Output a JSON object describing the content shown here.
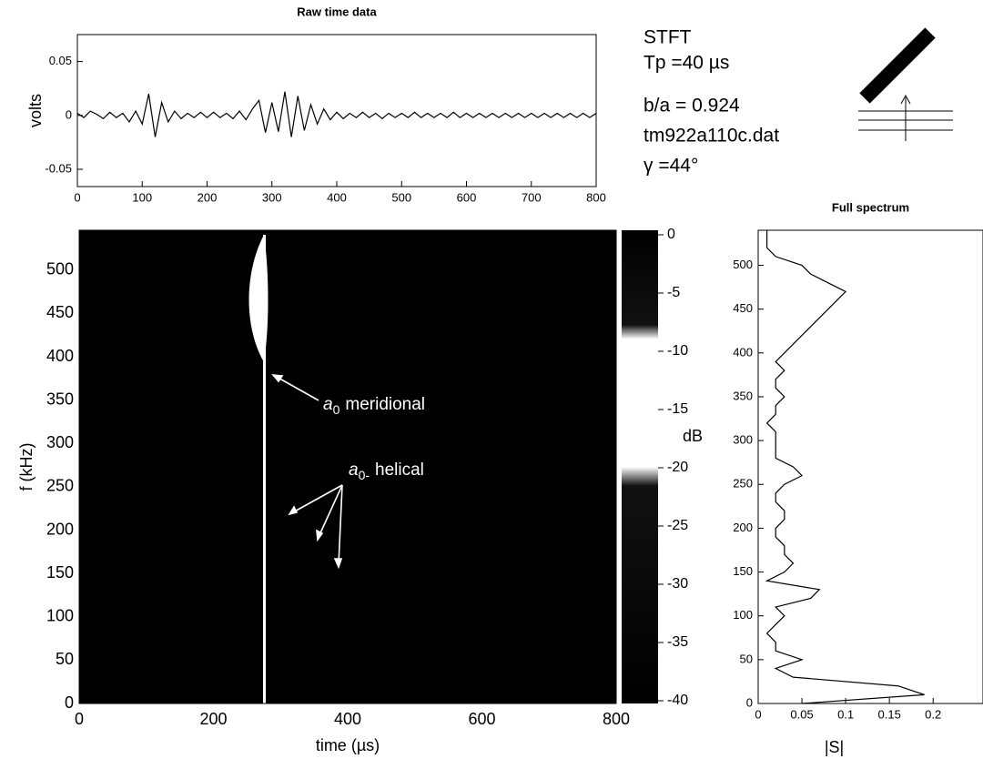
{
  "chart_data": [
    {
      "type": "line",
      "title": "Raw time data",
      "ylabel": "volts",
      "x": [
        0,
        10,
        20,
        30,
        40,
        50,
        60,
        70,
        80,
        90,
        100,
        110,
        120,
        130,
        140,
        150,
        160,
        170,
        180,
        190,
        200,
        210,
        220,
        230,
        240,
        250,
        260,
        270,
        280,
        290,
        300,
        310,
        320,
        330,
        340,
        350,
        360,
        370,
        380,
        390,
        400,
        410,
        420,
        430,
        440,
        450,
        460,
        470,
        480,
        490,
        500,
        510,
        520,
        530,
        540,
        550,
        560,
        570,
        580,
        590,
        600,
        610,
        620,
        630,
        640,
        650,
        660,
        670,
        680,
        690,
        700,
        710,
        720,
        730,
        740,
        750,
        760,
        770,
        780,
        790,
        800
      ],
      "values": [
        0.002,
        -0.002,
        0.004,
        0.001,
        -0.003,
        0.003,
        -0.002,
        0.002,
        -0.006,
        0.004,
        -0.008,
        0.02,
        -0.02,
        0.012,
        -0.006,
        0.004,
        -0.003,
        0.002,
        -0.002,
        0.003,
        -0.002,
        0.003,
        -0.002,
        0.002,
        -0.003,
        0.004,
        -0.004,
        0.006,
        0.014,
        -0.016,
        0.012,
        -0.015,
        0.022,
        -0.02,
        0.018,
        -0.014,
        0.01,
        -0.008,
        0.006,
        -0.004,
        0.003,
        -0.003,
        0.002,
        -0.002,
        0.003,
        -0.002,
        0.002,
        -0.003,
        0.002,
        -0.002,
        0.002,
        -0.002,
        0.003,
        -0.002,
        0.002,
        -0.002,
        0.002,
        -0.002,
        0.003,
        -0.002,
        0.002,
        -0.002,
        0.002,
        -0.002,
        0.002,
        -0.002,
        0.002,
        -0.002,
        0.002,
        -0.002,
        0.002,
        -0.002,
        0.002,
        -0.002,
        0.002,
        -0.002,
        0.002,
        -0.002,
        0.002,
        -0.002,
        0.002
      ],
      "color": "#000000",
      "xlim": [
        0,
        800
      ],
      "xticks": [
        0,
        100,
        200,
        300,
        400,
        500,
        600,
        700,
        800
      ],
      "ylim": [
        -0.066,
        0.075
      ],
      "yticks": [
        -0.05,
        0,
        0.05
      ]
    },
    {
      "type": "heatmap",
      "xlabel": "time (µs)",
      "ylabel": "f (kHz)",
      "xlim": [
        0,
        800
      ],
      "xticks": [
        0,
        200,
        400,
        600,
        800
      ],
      "ylim": [
        0,
        546
      ],
      "yticks": [
        0,
        50,
        100,
        150,
        200,
        250,
        300,
        350,
        400,
        450,
        500
      ],
      "colorbar": {
        "label": "dB",
        "lim": [
          -40,
          0
        ],
        "ticks": [
          0,
          -5,
          -10,
          -15,
          -20,
          -25,
          -30,
          -35,
          -40
        ]
      },
      "annotations": [
        {
          "symbol": "a",
          "subscript": "0",
          "text": "meridional"
        },
        {
          "symbol": "a",
          "subscript": "0-",
          "text": "helical"
        }
      ]
    },
    {
      "type": "line",
      "orientation": "horizontal",
      "title": "Full spectrum",
      "xlabel": "|S|",
      "y": [
        0,
        10,
        20,
        30,
        40,
        50,
        60,
        70,
        80,
        90,
        100,
        110,
        120,
        130,
        140,
        150,
        160,
        170,
        180,
        190,
        200,
        210,
        220,
        230,
        240,
        250,
        260,
        270,
        280,
        290,
        300,
        310,
        320,
        330,
        340,
        350,
        360,
        370,
        380,
        390,
        400,
        410,
        420,
        430,
        440,
        450,
        460,
        470,
        480,
        490,
        500,
        510,
        520,
        530,
        540
      ],
      "values": [
        0.05,
        0.19,
        0.16,
        0.04,
        0.02,
        0.05,
        0.02,
        0.02,
        0.01,
        0.02,
        0.03,
        0.02,
        0.06,
        0.07,
        0.01,
        0.03,
        0.04,
        0.03,
        0.03,
        0.02,
        0.02,
        0.03,
        0.03,
        0.02,
        0.02,
        0.03,
        0.05,
        0.04,
        0.02,
        0.02,
        0.02,
        0.02,
        0.01,
        0.02,
        0.02,
        0.03,
        0.02,
        0.02,
        0.03,
        0.02,
        0.03,
        0.04,
        0.05,
        0.06,
        0.07,
        0.08,
        0.09,
        0.1,
        0.08,
        0.06,
        0.05,
        0.02,
        0.01,
        0.01,
        0.01
      ],
      "color": "#000000",
      "xlim": [
        0,
        0.257
      ],
      "xticks": [
        0,
        0.05,
        0.1,
        0.15,
        0.2
      ],
      "ylim": [
        0,
        540
      ],
      "yticks": [
        0,
        50,
        100,
        150,
        200,
        250,
        300,
        350,
        400,
        450,
        500
      ]
    }
  ],
  "info": [
    "STFT",
    "Tp =40 µs",
    "b/a = 0.924",
    "tm922a110c.dat",
    "γ =44°"
  ]
}
